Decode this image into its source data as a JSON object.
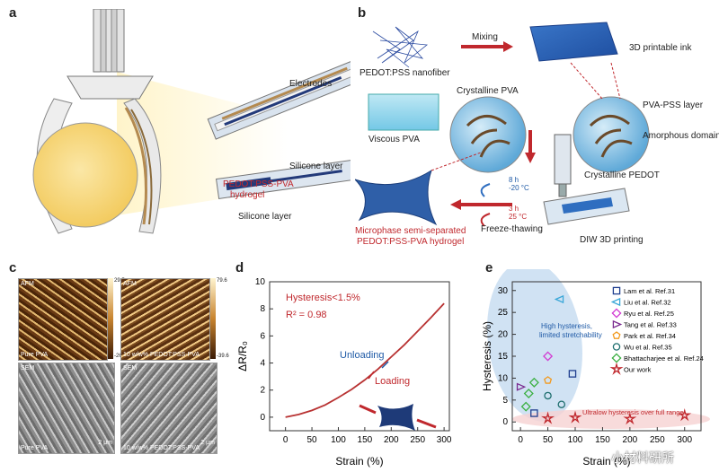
{
  "panel_labels": {
    "a": "a",
    "b": "b",
    "c": "c",
    "d": "d",
    "e": "e"
  },
  "panel_a": {
    "electrodes": "Electrodes",
    "silicone_top": "Silicone layer",
    "hydrogel_line1": "PEDOT:PSS-PVA",
    "hydrogel_line2": "hydrogel",
    "silicone_bottom": "Silicone layer"
  },
  "panel_b": {
    "nanofiber": "PEDOT:PSS nanofiber",
    "mixing": "Mixing",
    "ink": "3D printable ink",
    "crystalline_pva": "Crystalline PVA",
    "viscous_pva": "Viscous PVA",
    "pva_pss": "PVA-PSS layer",
    "amorphous": "Amorphous domain",
    "crystalline_pedot": "Crystalline PEDOT",
    "cond1_time": "8 h",
    "cond1_temp": "-20 °C",
    "cond2_time": "3 h",
    "cond2_temp": "25 °C",
    "freeze": "Freeze-thawing",
    "diw": "DIW 3D printing",
    "result_line1": "Microphase semi-separated",
    "result_line2": "PEDOT:PSS-PVA hydrogel"
  },
  "panel_c": {
    "afm": "AFM",
    "sem": "SEM",
    "pure_pva": "Pure PVA",
    "mixed": "10 w/w% PEDOT:PSS-PVA",
    "cbar1_top": "29.5",
    "cbar1_bot": "-26.3",
    "cbar2_top": "79.6",
    "cbar2_bot": "-39.6",
    "scale": "2 μm"
  },
  "panel_d": {
    "chart_data": {
      "type": "line",
      "xlabel": "Strain (%)",
      "ylabel": "ΔR/R₀",
      "xlim": [
        -30,
        310
      ],
      "ylim": [
        -1,
        10
      ],
      "xticks": [
        0,
        50,
        100,
        150,
        200,
        250,
        300
      ],
      "yticks": [
        0,
        2,
        4,
        6,
        8,
        10
      ],
      "series": [
        {
          "values": [
            [
              0,
              0
            ],
            [
              25,
              0.2
            ],
            [
              50,
              0.5
            ],
            [
              75,
              0.9
            ],
            [
              100,
              1.45
            ],
            [
              125,
              2.05
            ],
            [
              150,
              2.75
            ],
            [
              175,
              3.55
            ],
            [
              200,
              4.45
            ],
            [
              225,
              5.35
            ],
            [
              250,
              6.35
            ],
            [
              275,
              7.35
            ],
            [
              300,
              8.4
            ]
          ]
        }
      ],
      "annotations": {
        "hysteresis": "Hysteresis<1.5%",
        "r2": "R² = 0.98",
        "unloading": "Unloading",
        "loading": "Loading"
      },
      "colors": {
        "curve": "#b83232",
        "unloading": "#1f5aa6",
        "loading": "#c0282d"
      }
    }
  },
  "panel_e": {
    "chart_data": {
      "type": "scatter",
      "xlabel": "Strain (%)",
      "ylabel": "Hysteresis (%)",
      "xlim": [
        -15,
        330
      ],
      "ylim": [
        -2,
        32
      ],
      "xticks": [
        0,
        50,
        100,
        150,
        200,
        250,
        300
      ],
      "yticks": [
        0,
        5,
        10,
        15,
        20,
        25,
        30
      ],
      "legend_position": "top-right",
      "series": [
        {
          "name": "Lam et al. Ref.31",
          "marker": "square",
          "color": "#1f3f8f",
          "points": [
            [
              25,
              2
            ],
            [
              95,
              11
            ]
          ]
        },
        {
          "name": "Liu et al. Ref.32",
          "marker": "triangle-left",
          "color": "#3aa7d8",
          "points": [
            [
              72,
              28
            ]
          ]
        },
        {
          "name": "Ryu et al. Ref.25",
          "marker": "diamond",
          "color": "#d23bd2",
          "points": [
            [
              50,
              15
            ]
          ]
        },
        {
          "name": "Tang et al. Ref.33",
          "marker": "triangle-right",
          "color": "#7a2a8f",
          "points": [
            [
              0,
              8
            ]
          ]
        },
        {
          "name": "Park et al. Ref.34",
          "marker": "pentagon",
          "color": "#f29a1f",
          "points": [
            [
              50,
              9.5
            ]
          ]
        },
        {
          "name": "Wu et al. Ref.35",
          "marker": "circle",
          "color": "#1f6f6f",
          "points": [
            [
              50,
              6
            ],
            [
              75,
              4
            ]
          ]
        },
        {
          "name": "Bhattacharjee et al. Ref.24",
          "marker": "diamond",
          "color": "#3cb043",
          "points": [
            [
              10,
              3.5
            ],
            [
              25,
              9
            ],
            [
              15,
              6.5
            ]
          ]
        },
        {
          "name": "Our work",
          "marker": "star",
          "color": "#c0282d",
          "points": [
            [
              50,
              0.8
            ],
            [
              100,
              1
            ],
            [
              200,
              0.7
            ],
            [
              300,
              1.5
            ]
          ]
        }
      ],
      "annotations": {
        "high_line1": "High hysteresis,",
        "high_line2": "limited stretchability",
        "low": "Ultralow hysteresis over full range"
      }
    }
  },
  "watermark": "小材料研所"
}
